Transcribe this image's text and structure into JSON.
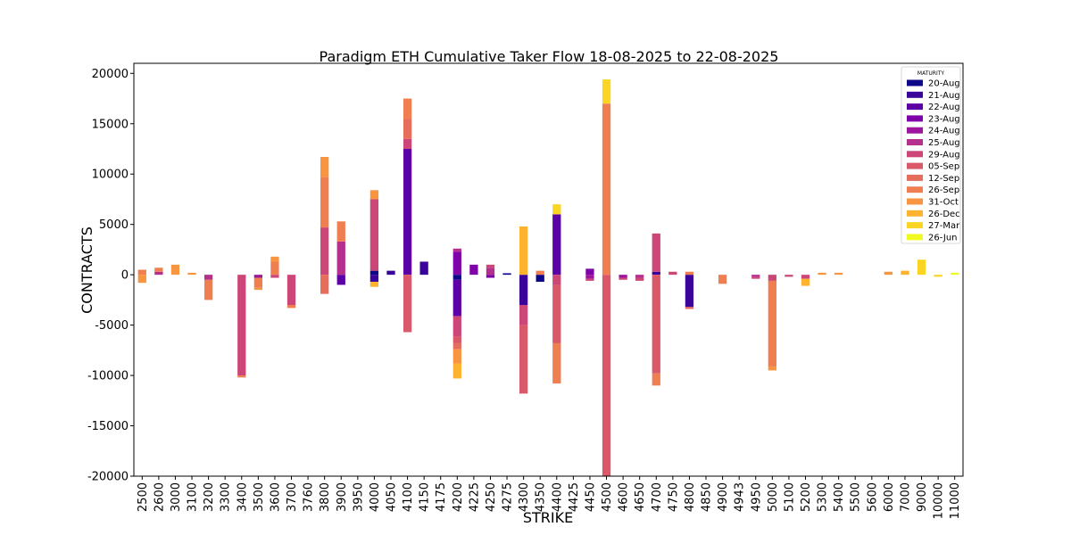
{
  "chart_data": {
    "type": "bar",
    "stacked": true,
    "title": "Paradigm ETH Cumulative Taker Flow 18-08-2025 to 22-08-2025",
    "xlabel": "STRIKE",
    "ylabel": "CONTRACTS",
    "ylim": [
      -20000,
      21000
    ],
    "yticks": [
      20000,
      15000,
      10000,
      5000,
      0,
      -5000,
      -10000,
      -15000,
      -20000
    ],
    "ytick_labels": [
      "20000",
      "15000",
      "10000",
      "5000",
      "0",
      "-5000",
      "-10000",
      "-15000",
      "-20000"
    ],
    "grid": false,
    "legend_title": "MATURITY",
    "legend_position": "top-right",
    "categories": [
      "2500",
      "2600",
      "3000",
      "3100",
      "3200",
      "3300",
      "3400",
      "3500",
      "3600",
      "3700",
      "3760",
      "3800",
      "3900",
      "3950",
      "4000",
      "4050",
      "4100",
      "4150",
      "4175",
      "4200",
      "4225",
      "4250",
      "4275",
      "4300",
      "4350",
      "4400",
      "4425",
      "4450",
      "4500",
      "4600",
      "4650",
      "4700",
      "4750",
      "4800",
      "4850",
      "4900",
      "4943",
      "4950",
      "5000",
      "5100",
      "5200",
      "5300",
      "5400",
      "5500",
      "5600",
      "6000",
      "7000",
      "9000",
      "10000",
      "11000"
    ],
    "series": [
      {
        "name": "20-Aug",
        "color": "#0d0887",
        "values": [
          0,
          0,
          0,
          0,
          0,
          0,
          0,
          0,
          0,
          0,
          0,
          0,
          0,
          0,
          400,
          0,
          0,
          0,
          0,
          -500,
          0,
          0,
          150,
          0,
          -700,
          0,
          0,
          0,
          0,
          0,
          0,
          0,
          0,
          0,
          0,
          0,
          0,
          0,
          0,
          0,
          0,
          0,
          0,
          0,
          0,
          0,
          0,
          0,
          0,
          0
        ]
      },
      {
        "name": "21-Aug",
        "color": "#3a049a",
        "values": [
          0,
          0,
          0,
          0,
          0,
          0,
          0,
          0,
          0,
          0,
          0,
          0,
          0,
          0,
          -700,
          400,
          0,
          1300,
          0,
          0,
          0,
          0,
          0,
          -3000,
          0,
          0,
          0,
          0,
          0,
          0,
          0,
          300,
          0,
          -3200,
          0,
          0,
          0,
          0,
          0,
          0,
          0,
          0,
          0,
          0,
          0,
          0,
          0,
          0,
          0,
          0
        ]
      },
      {
        "name": "22-Aug",
        "color": "#5c01a6",
        "values": [
          0,
          0,
          0,
          0,
          0,
          0,
          0,
          0,
          0,
          0,
          0,
          0,
          -1000,
          0,
          0,
          0,
          12500,
          0,
          0,
          -3600,
          0,
          0,
          0,
          0,
          0,
          6000,
          0,
          0,
          0,
          0,
          0,
          0,
          0,
          0,
          0,
          0,
          0,
          0,
          0,
          0,
          0,
          0,
          0,
          0,
          0,
          0,
          0,
          0,
          0,
          0
        ]
      },
      {
        "name": "23-Aug",
        "color": "#7e03a8",
        "values": [
          0,
          0,
          0,
          0,
          0,
          0,
          0,
          0,
          0,
          0,
          0,
          0,
          0,
          0,
          0,
          0,
          0,
          0,
          0,
          2300,
          1000,
          -300,
          0,
          0,
          0,
          0,
          0,
          600,
          0,
          0,
          0,
          0,
          0,
          0,
          0,
          0,
          0,
          0,
          0,
          0,
          0,
          0,
          0,
          0,
          0,
          0,
          0,
          0,
          0,
          0
        ]
      },
      {
        "name": "24-Aug",
        "color": "#9c179e",
        "values": [
          0,
          0,
          0,
          0,
          0,
          0,
          0,
          -300,
          0,
          0,
          0,
          0,
          0,
          0,
          0,
          0,
          0,
          0,
          0,
          0,
          0,
          0,
          0,
          0,
          0,
          0,
          0,
          -400,
          0,
          -300,
          0,
          0,
          0,
          0,
          0,
          0,
          0,
          0,
          0,
          0,
          0,
          0,
          0,
          0,
          0,
          0,
          0,
          0,
          0,
          0
        ]
      },
      {
        "name": "25-Aug",
        "color": "#b52f8c",
        "values": [
          0,
          300,
          0,
          0,
          -500,
          0,
          0,
          0,
          0,
          0,
          0,
          0,
          3300,
          0,
          0,
          0,
          0,
          0,
          0,
          300,
          0,
          700,
          0,
          0,
          0,
          0,
          0,
          0,
          0,
          0,
          -300,
          0,
          0,
          0,
          0,
          0,
          0,
          -200,
          0,
          0,
          0,
          0,
          0,
          0,
          0,
          0,
          0,
          0,
          0,
          0
        ]
      },
      {
        "name": "29-Aug",
        "color": "#cc4778",
        "values": [
          0,
          0,
          0,
          0,
          0,
          0,
          -10000,
          0,
          -300,
          -3000,
          0,
          4700,
          0,
          0,
          7100,
          0,
          1000,
          0,
          0,
          -2000,
          0,
          300,
          0,
          -2000,
          0,
          -1000,
          0,
          -200,
          0,
          -200,
          -300,
          3800,
          300,
          0,
          0,
          0,
          0,
          -200,
          -600,
          -200,
          -400,
          0,
          0,
          0,
          0,
          0,
          0,
          0,
          0,
          0
        ]
      },
      {
        "name": "05-Sep",
        "color": "#d9586a",
        "values": [
          0,
          0,
          0,
          0,
          0,
          0,
          0,
          0,
          0,
          0,
          0,
          0,
          0,
          0,
          0,
          0,
          -5700,
          0,
          0,
          -700,
          0,
          0,
          0,
          -6800,
          0,
          -5800,
          0,
          0,
          -20000,
          0,
          0,
          -9800,
          0,
          0,
          0,
          0,
          0,
          0,
          0,
          0,
          0,
          0,
          0,
          0,
          0,
          0,
          0,
          0,
          0,
          0
        ]
      },
      {
        "name": "12-Sep",
        "color": "#e66c5c",
        "values": [
          0,
          0,
          0,
          0,
          0,
          0,
          0,
          0,
          0,
          0,
          0,
          -1900,
          0,
          0,
          0,
          0,
          2000,
          0,
          0,
          -600,
          0,
          0,
          0,
          0,
          0,
          0,
          0,
          0,
          0,
          0,
          0,
          0,
          0,
          -200,
          0,
          0,
          0,
          0,
          0,
          0,
          0,
          0,
          0,
          0,
          0,
          0,
          0,
          0,
          0,
          0
        ]
      },
      {
        "name": "26-Sep",
        "color": "#ef7e50",
        "values": [
          500,
          400,
          0,
          0,
          -2000,
          0,
          -200,
          -1000,
          1300,
          -300,
          0,
          5000,
          2000,
          0,
          0,
          0,
          2000,
          0,
          0,
          0,
          0,
          0,
          0,
          0,
          400,
          -4000,
          0,
          0,
          17000,
          0,
          0,
          -1200,
          0,
          300,
          0,
          -900,
          0,
          0,
          -8500,
          0,
          0,
          0,
          0,
          0,
          0,
          0,
          0,
          0,
          0,
          0
        ]
      },
      {
        "name": "31-Oct",
        "color": "#f89540",
        "values": [
          -800,
          0,
          1000,
          200,
          0,
          0,
          0,
          -200,
          500,
          0,
          0,
          2000,
          0,
          0,
          900,
          0,
          0,
          0,
          0,
          -1400,
          0,
          0,
          0,
          0,
          0,
          0,
          0,
          0,
          0,
          0,
          0,
          0,
          0,
          0,
          0,
          0,
          0,
          0,
          -400,
          0,
          0,
          200,
          200,
          0,
          0,
          300,
          0,
          0,
          0,
          0
        ]
      },
      {
        "name": "26-Dec",
        "color": "#fdb32f",
        "values": [
          0,
          0,
          0,
          0,
          0,
          0,
          0,
          0,
          0,
          0,
          0,
          0,
          0,
          0,
          -500,
          0,
          0,
          0,
          0,
          -1500,
          0,
          0,
          0,
          4800,
          0,
          0,
          0,
          0,
          0,
          0,
          0,
          0,
          0,
          0,
          0,
          0,
          0,
          0,
          0,
          0,
          -700,
          0,
          0,
          0,
          0,
          0,
          400,
          0,
          0,
          0
        ]
      },
      {
        "name": "27-Mar",
        "color": "#fbd524",
        "values": [
          0,
          0,
          0,
          0,
          0,
          0,
          0,
          0,
          0,
          0,
          0,
          0,
          0,
          0,
          0,
          0,
          0,
          0,
          0,
          0,
          0,
          0,
          0,
          0,
          0,
          1000,
          0,
          0,
          2400,
          0,
          0,
          0,
          0,
          0,
          0,
          0,
          0,
          0,
          0,
          0,
          0,
          0,
          0,
          0,
          0,
          0,
          0,
          1500,
          -200,
          0
        ]
      },
      {
        "name": "26-Jun",
        "color": "#f0f921",
        "values": [
          0,
          0,
          0,
          0,
          0,
          0,
          0,
          0,
          0,
          0,
          0,
          0,
          0,
          0,
          0,
          0,
          0,
          0,
          0,
          0,
          0,
          0,
          0,
          0,
          0,
          0,
          0,
          0,
          0,
          0,
          0,
          0,
          0,
          0,
          0,
          0,
          0,
          0,
          0,
          0,
          0,
          0,
          0,
          0,
          0,
          0,
          0,
          0,
          0,
          200
        ]
      }
    ]
  }
}
